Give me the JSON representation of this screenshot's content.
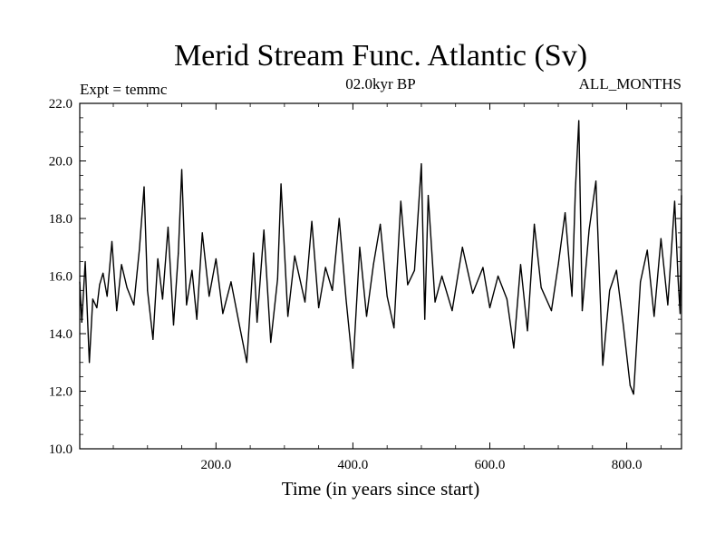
{
  "chart_data": {
    "type": "line",
    "title": "Merid Stream Func. Atlantic (Sv)",
    "subtitle_left": "Expt = temmc",
    "subtitle_center": "02.0kyr BP",
    "subtitle_right": "ALL_MONTHS",
    "xlabel": "Time (in years since start)",
    "ylabel": "",
    "xlim": [
      1,
      880
    ],
    "ylim": [
      10,
      22
    ],
    "xticks": [
      200,
      400,
      600,
      800
    ],
    "xtick_labels": [
      "200.0",
      "400.0",
      "600.0",
      "800.0"
    ],
    "yticks": [
      10,
      12,
      14,
      16,
      18,
      20,
      22
    ],
    "ytick_labels": [
      "10.0",
      "12.0",
      "14.0",
      "16.0",
      "18.0",
      "20.0",
      "22.0"
    ],
    "grid": false,
    "series": [
      {
        "name": "Merid Stream Func. Atlantic",
        "color": "#000000",
        "x": [
          1,
          4,
          9,
          15,
          20,
          26,
          30,
          35,
          41,
          48,
          55,
          62,
          70,
          80,
          88,
          95,
          100,
          108,
          115,
          122,
          130,
          138,
          145,
          150,
          157,
          165,
          172,
          180,
          190,
          200,
          210,
          222,
          235,
          245,
          255,
          260,
          270,
          280,
          290,
          295,
          305,
          315,
          330,
          340,
          350,
          360,
          370,
          380,
          390,
          400,
          410,
          420,
          430,
          440,
          450,
          460,
          470,
          480,
          490,
          500,
          505,
          510,
          520,
          530,
          545,
          560,
          575,
          590,
          600,
          612,
          625,
          635,
          645,
          655,
          665,
          675,
          690,
          700,
          710,
          720,
          725,
          730,
          735,
          745,
          755,
          765,
          775,
          785,
          795,
          805,
          810,
          820,
          830,
          840,
          850,
          860,
          870,
          875,
          878,
          880
        ],
        "values": [
          15.8,
          14.4,
          16.5,
          13.0,
          15.2,
          14.9,
          15.7,
          16.1,
          15.3,
          17.2,
          14.8,
          16.4,
          15.6,
          15.0,
          16.9,
          19.1,
          15.5,
          13.8,
          16.6,
          15.2,
          17.7,
          14.3,
          16.8,
          19.7,
          15.0,
          16.2,
          14.5,
          17.5,
          15.3,
          16.6,
          14.7,
          15.8,
          14.2,
          13.0,
          16.8,
          14.4,
          17.6,
          13.7,
          15.9,
          19.2,
          14.6,
          16.7,
          15.1,
          17.9,
          14.9,
          16.3,
          15.5,
          18.0,
          15.2,
          12.8,
          17.0,
          14.6,
          16.4,
          17.8,
          15.3,
          14.2,
          18.6,
          15.7,
          16.2,
          19.9,
          14.5,
          18.8,
          15.1,
          16.0,
          14.8,
          17.0,
          15.4,
          16.3,
          14.9,
          16.0,
          15.2,
          13.5,
          16.4,
          14.1,
          17.8,
          15.6,
          14.8,
          16.4,
          18.2,
          15.3,
          19.0,
          21.4,
          14.8,
          17.6,
          19.3,
          12.9,
          15.5,
          16.2,
          14.3,
          12.2,
          11.9,
          15.8,
          16.9,
          14.6,
          17.3,
          15.0,
          18.6,
          15.9,
          14.7,
          18.8
        ]
      }
    ]
  }
}
